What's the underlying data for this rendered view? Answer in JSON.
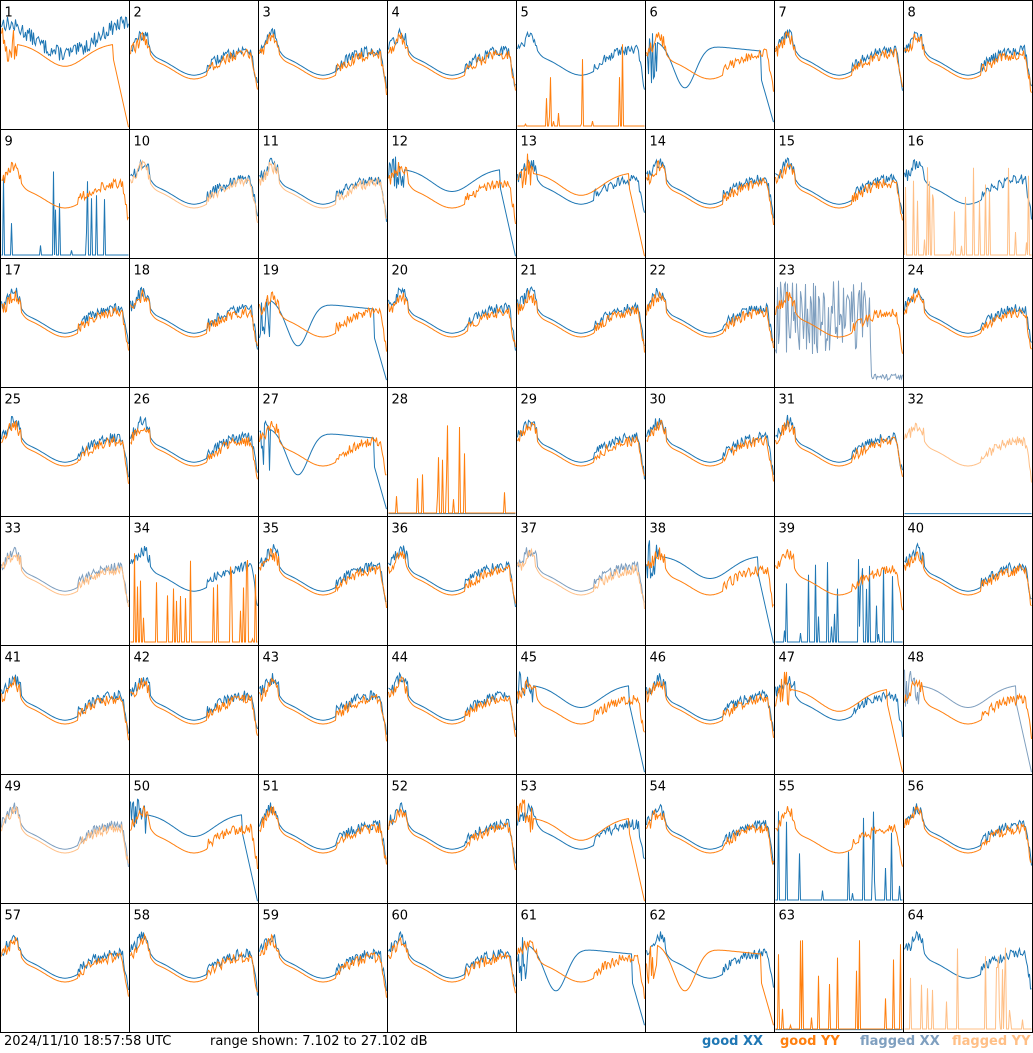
{
  "timestamp": "2024/11/10 18:57:58 UTC",
  "range_text": "range shown: 7.102 to 27.102 dB",
  "legend": {
    "good_xx": "good XX",
    "good_yy": "good YY",
    "flagged_xx": "flagged XX",
    "flagged_yy": "flagged YY"
  },
  "colors": {
    "good_xx": "#1f77b4",
    "good_yy": "#ff7f0e",
    "flagged_xx": "#7f9fbf",
    "flagged_yy": "#ffbf86"
  },
  "chart_data": {
    "type": "line",
    "grid_rows": 8,
    "grid_cols": 8,
    "ylim": [
      7.102,
      27.102
    ],
    "panels": [
      {
        "label": "1",
        "xx": "good",
        "yy": "good",
        "xx_shape": "rough",
        "yy_shape": "dropend"
      },
      {
        "label": "2",
        "xx": "good",
        "yy": "good"
      },
      {
        "label": "3",
        "xx": "good",
        "yy": "good"
      },
      {
        "label": "4",
        "xx": "good",
        "yy": "good"
      },
      {
        "label": "5",
        "xx": "good",
        "yy": "good",
        "yy_shape": "spikes_low"
      },
      {
        "label": "6",
        "xx": "good",
        "yy": "good",
        "xx_shape": "dip"
      },
      {
        "label": "7",
        "xx": "good",
        "yy": "good"
      },
      {
        "label": "8",
        "xx": "good",
        "yy": "good"
      },
      {
        "label": "9",
        "xx": "good",
        "yy": "good",
        "xx_shape": "spikes_low"
      },
      {
        "label": "10",
        "xx": "good",
        "yy": "flagged"
      },
      {
        "label": "11",
        "xx": "good",
        "yy": "flagged"
      },
      {
        "label": "12",
        "xx": "good",
        "yy": "good",
        "xx_shape": "dropend"
      },
      {
        "label": "13",
        "xx": "good",
        "yy": "good",
        "yy_shape": "dropend"
      },
      {
        "label": "14",
        "xx": "good",
        "yy": "good"
      },
      {
        "label": "15",
        "xx": "good",
        "yy": "good"
      },
      {
        "label": "16",
        "xx": "good",
        "yy": "flagged",
        "yy_shape": "spikes_low"
      },
      {
        "label": "17",
        "xx": "good",
        "yy": "good"
      },
      {
        "label": "18",
        "xx": "good",
        "yy": "good"
      },
      {
        "label": "19",
        "xx": "good",
        "yy": "good",
        "xx_shape": "dip"
      },
      {
        "label": "20",
        "xx": "good",
        "yy": "good"
      },
      {
        "label": "21",
        "xx": "good",
        "yy": "good"
      },
      {
        "label": "22",
        "xx": "good",
        "yy": "good"
      },
      {
        "label": "23",
        "xx": "flagged",
        "yy": "good",
        "xx_shape": "spikes_mid"
      },
      {
        "label": "24",
        "xx": "good",
        "yy": "good"
      },
      {
        "label": "25",
        "xx": "good",
        "yy": "good"
      },
      {
        "label": "26",
        "xx": "good",
        "yy": "good"
      },
      {
        "label": "27",
        "xx": "good",
        "yy": "good",
        "xx_shape": "dip"
      },
      {
        "label": "28",
        "xx": "good",
        "yy": "good",
        "yy_shape": "spikes_low",
        "xx_shape": "flat_low"
      },
      {
        "label": "29",
        "xx": "good",
        "yy": "good"
      },
      {
        "label": "30",
        "xx": "good",
        "yy": "good"
      },
      {
        "label": "31",
        "xx": "good",
        "yy": "good"
      },
      {
        "label": "32",
        "xx": "good",
        "yy": "flagged",
        "xx_shape": "flat_low"
      },
      {
        "label": "33",
        "xx": "flagged",
        "yy": "flagged"
      },
      {
        "label": "34",
        "xx": "good",
        "yy": "good",
        "yy_shape": "spikes_low"
      },
      {
        "label": "35",
        "xx": "good",
        "yy": "good"
      },
      {
        "label": "36",
        "xx": "good",
        "yy": "good"
      },
      {
        "label": "37",
        "xx": "flagged",
        "yy": "flagged"
      },
      {
        "label": "38",
        "xx": "good",
        "yy": "good",
        "xx_shape": "dropend"
      },
      {
        "label": "39",
        "xx": "good",
        "yy": "good",
        "xx_shape": "spikes_low"
      },
      {
        "label": "40",
        "xx": "good",
        "yy": "good"
      },
      {
        "label": "41",
        "xx": "good",
        "yy": "good"
      },
      {
        "label": "42",
        "xx": "good",
        "yy": "good"
      },
      {
        "label": "43",
        "xx": "good",
        "yy": "good"
      },
      {
        "label": "44",
        "xx": "good",
        "yy": "good"
      },
      {
        "label": "45",
        "xx": "good",
        "yy": "good",
        "xx_shape": "dropend"
      },
      {
        "label": "46",
        "xx": "good",
        "yy": "good"
      },
      {
        "label": "47",
        "xx": "good",
        "yy": "good",
        "yy_shape": "dropend"
      },
      {
        "label": "48",
        "xx": "flagged",
        "yy": "good",
        "xx_shape": "dropend"
      },
      {
        "label": "49",
        "xx": "flagged",
        "yy": "flagged"
      },
      {
        "label": "50",
        "xx": "good",
        "yy": "good",
        "xx_shape": "dropend"
      },
      {
        "label": "51",
        "xx": "good",
        "yy": "good"
      },
      {
        "label": "52",
        "xx": "good",
        "yy": "good"
      },
      {
        "label": "53",
        "xx": "good",
        "yy": "good",
        "yy_shape": "dropend"
      },
      {
        "label": "54",
        "xx": "good",
        "yy": "good"
      },
      {
        "label": "55",
        "xx": "good",
        "yy": "good",
        "xx_shape": "spikes_low"
      },
      {
        "label": "56",
        "xx": "good",
        "yy": "good"
      },
      {
        "label": "57",
        "xx": "good",
        "yy": "good"
      },
      {
        "label": "58",
        "xx": "good",
        "yy": "good"
      },
      {
        "label": "59",
        "xx": "good",
        "yy": "good"
      },
      {
        "label": "60",
        "xx": "good",
        "yy": "good"
      },
      {
        "label": "61",
        "xx": "good",
        "yy": "good",
        "xx_shape": "dip"
      },
      {
        "label": "62",
        "xx": "good",
        "yy": "good",
        "yy_shape": "dip"
      },
      {
        "label": "63",
        "xx": "good",
        "yy": "good",
        "yy_shape": "spikes_low",
        "xx_shape": "flat_low"
      },
      {
        "label": "64",
        "xx": "good",
        "yy": "flagged",
        "yy_shape": "spikes_low"
      }
    ]
  }
}
